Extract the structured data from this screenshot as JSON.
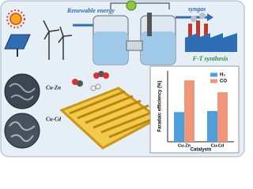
{
  "illustration": {
    "energy_label": "Renewable energy",
    "product_label": "syngas",
    "process_label": "F-T synthesis",
    "sample_labels": [
      "Cu-Zn",
      "Cu-Cd"
    ]
  },
  "chart_data": {
    "type": "bar",
    "y_label": "Faradaic efficiency (%)",
    "x_label": "Catalysts",
    "categories": [
      "Cu-Zn",
      "Cu-Cd"
    ],
    "series": [
      {
        "name": "H₂",
        "color": "#4f9fdc",
        "values": [
          30,
          31
        ]
      },
      {
        "name": "CO",
        "color": "#f0967a",
        "values": [
          62,
          50
        ]
      }
    ],
    "ylim": [
      0,
      70
    ],
    "legend": "top-right"
  }
}
